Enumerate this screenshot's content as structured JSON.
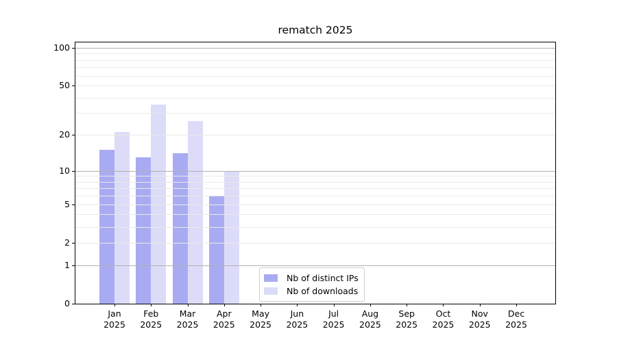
{
  "title": "rematch 2025",
  "chart_data": {
    "type": "bar",
    "title": "rematch 2025",
    "categories": [
      "Jan",
      "Feb",
      "Mar",
      "Apr",
      "May",
      "Jun",
      "Jul",
      "Aug",
      "Sep",
      "Oct",
      "Nov",
      "Dec"
    ],
    "category_year": "2025",
    "series": [
      {
        "name": "Nb of distinct IPs",
        "color": "#a9abf2",
        "values": [
          15,
          13,
          14,
          6,
          0,
          0,
          0,
          0,
          0,
          0,
          0,
          0
        ]
      },
      {
        "name": "Nb of downloads",
        "color": "#dcdcf8",
        "values": [
          21,
          35,
          26,
          10,
          0,
          0,
          0,
          0,
          0,
          0,
          0,
          0
        ]
      }
    ],
    "xlabel": "",
    "ylabel": "",
    "yscale": "log1p",
    "ylim": [
      0,
      110
    ],
    "ytick_labels": [
      "0",
      "1",
      "2",
      "5",
      "10",
      "20",
      "50",
      "100"
    ],
    "gridlines_major": [
      1,
      10,
      100
    ],
    "gridlines_minor": [
      2,
      3,
      4,
      5,
      6,
      7,
      8,
      9,
      20,
      30,
      40,
      50,
      60,
      70,
      80,
      90
    ],
    "grid": true,
    "legend_position": "lower-center"
  },
  "colors": {
    "background": "#ffffff",
    "spine": "#000000",
    "text": "#000000",
    "grid_major": "#b0b0b0",
    "grid_minor": "#e9e9e9",
    "legend_border": "#cccccc",
    "series_1": "#a9abf2",
    "series_2": "#dcdcf8"
  }
}
